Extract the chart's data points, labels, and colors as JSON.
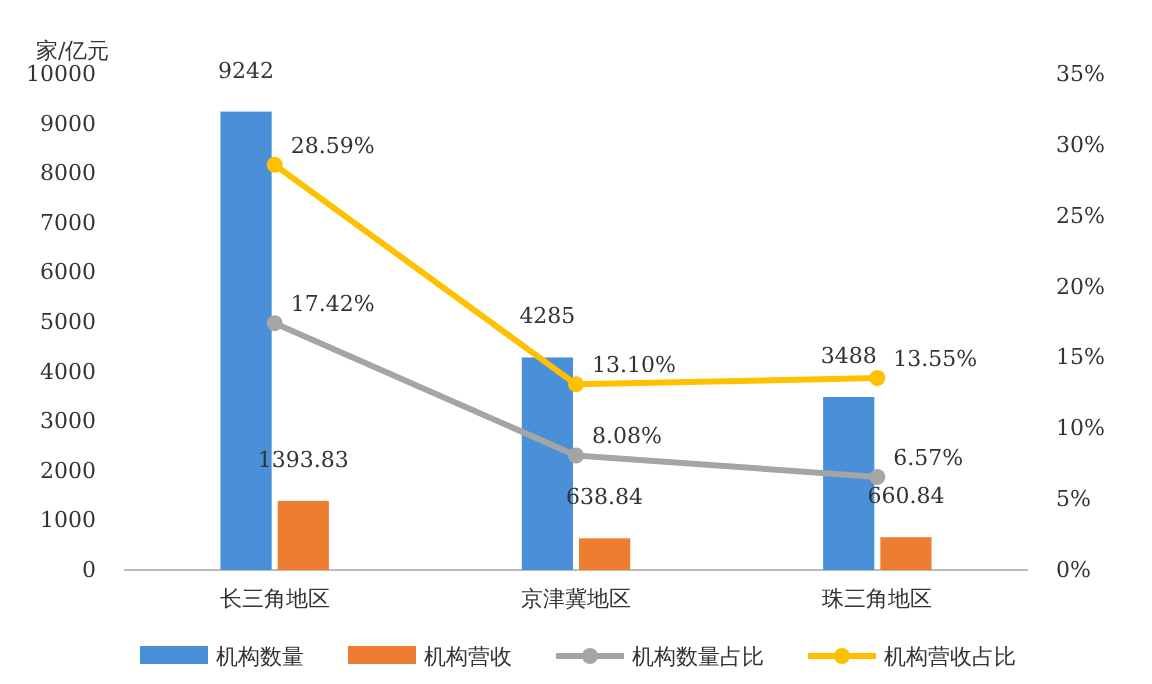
{
  "chart_data": {
    "type": "bar",
    "ylabel": "家/亿元",
    "categories": [
      "长三角地区",
      "京津冀地区",
      "珠三角地区"
    ],
    "ylim": [
      0,
      10000
    ],
    "yticks": [
      0,
      1000,
      2000,
      3000,
      4000,
      5000,
      6000,
      7000,
      8000,
      9000,
      10000
    ],
    "y2lim": [
      0,
      35
    ],
    "y2ticks": [
      {
        "value": 0,
        "label": "0%"
      },
      {
        "value": 5,
        "label": "5%"
      },
      {
        "value": 10,
        "label": "10%"
      },
      {
        "value": 15,
        "label": "15%"
      },
      {
        "value": 20,
        "label": "20%"
      },
      {
        "value": 25,
        "label": "25%"
      },
      {
        "value": 30,
        "label": "30%"
      },
      {
        "value": 35,
        "label": "35%"
      }
    ],
    "grid": false,
    "legend": "bottom",
    "marker": "circle",
    "series": [
      {
        "name": "机构数量",
        "color": "#4a90d9",
        "values": [
          9242,
          4285,
          3488
        ],
        "value_labels": [
          "9242",
          "4285",
          "3488"
        ]
      },
      {
        "name": "机构营收",
        "color": "#ed7d31",
        "values": [
          1393.83,
          638.84,
          660.84
        ],
        "value_labels": [
          "1393.83",
          "638.84",
          "660.84"
        ]
      },
      {
        "name": "机构数量占比",
        "type": "line",
        "axis": "y2",
        "color": "#a5a5a5",
        "values": [
          17.42,
          8.08,
          6.57
        ],
        "value_labels": [
          "17.42%",
          "8.08%",
          "6.57%"
        ]
      },
      {
        "name": "机构营收占比",
        "type": "line",
        "axis": "y2",
        "color": "#ffc000",
        "values": [
          28.59,
          13.1,
          13.55
        ],
        "value_labels": [
          "28.59%",
          "13.10%",
          "13.55%"
        ]
      }
    ]
  }
}
